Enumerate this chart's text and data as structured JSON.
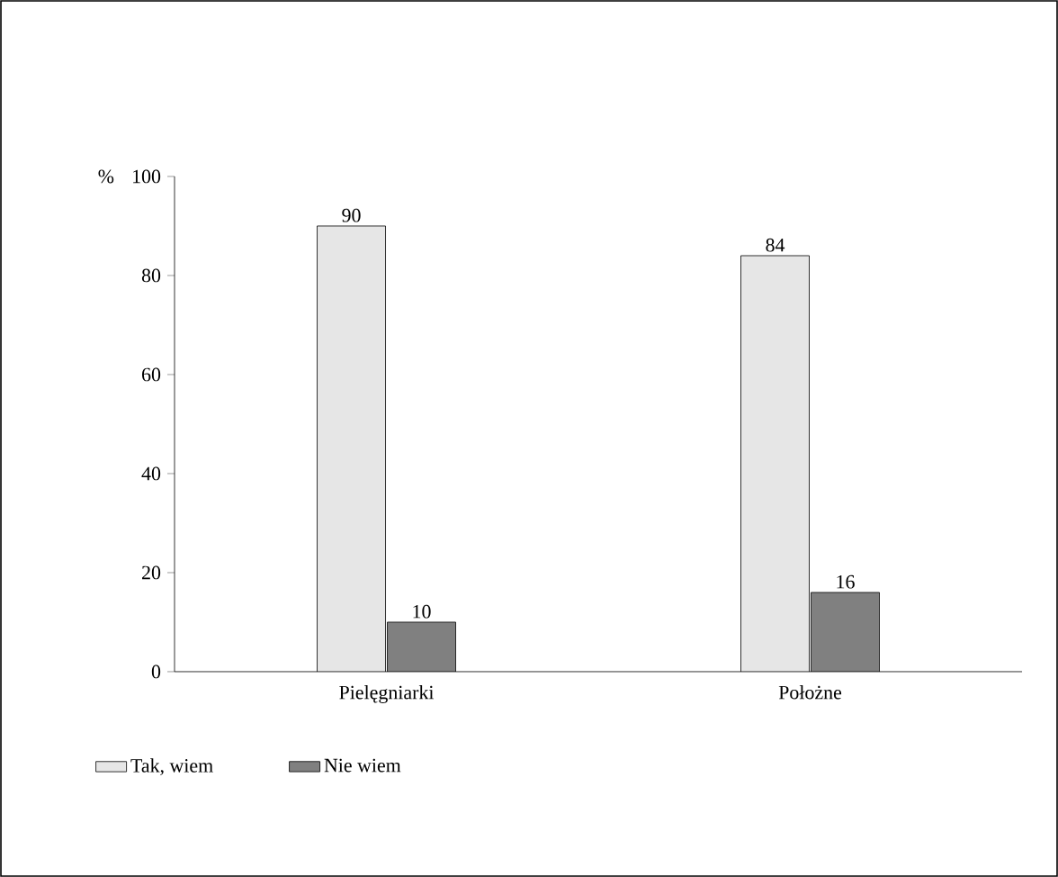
{
  "chart_data": {
    "type": "bar",
    "ylabel": "%",
    "categories": [
      "Pielęgniarki",
      "Położne"
    ],
    "series": [
      {
        "name": "Tak, wiem",
        "color": "#e6e6e6",
        "values": [
          90,
          84
        ]
      },
      {
        "name": "Nie wiem",
        "color": "#808080",
        "values": [
          10,
          16
        ]
      }
    ],
    "ylim": [
      0,
      100
    ],
    "yticks": [
      0,
      20,
      40,
      60,
      80,
      100
    ],
    "data_labels": true,
    "legend": "bottom left",
    "grid": false
  }
}
